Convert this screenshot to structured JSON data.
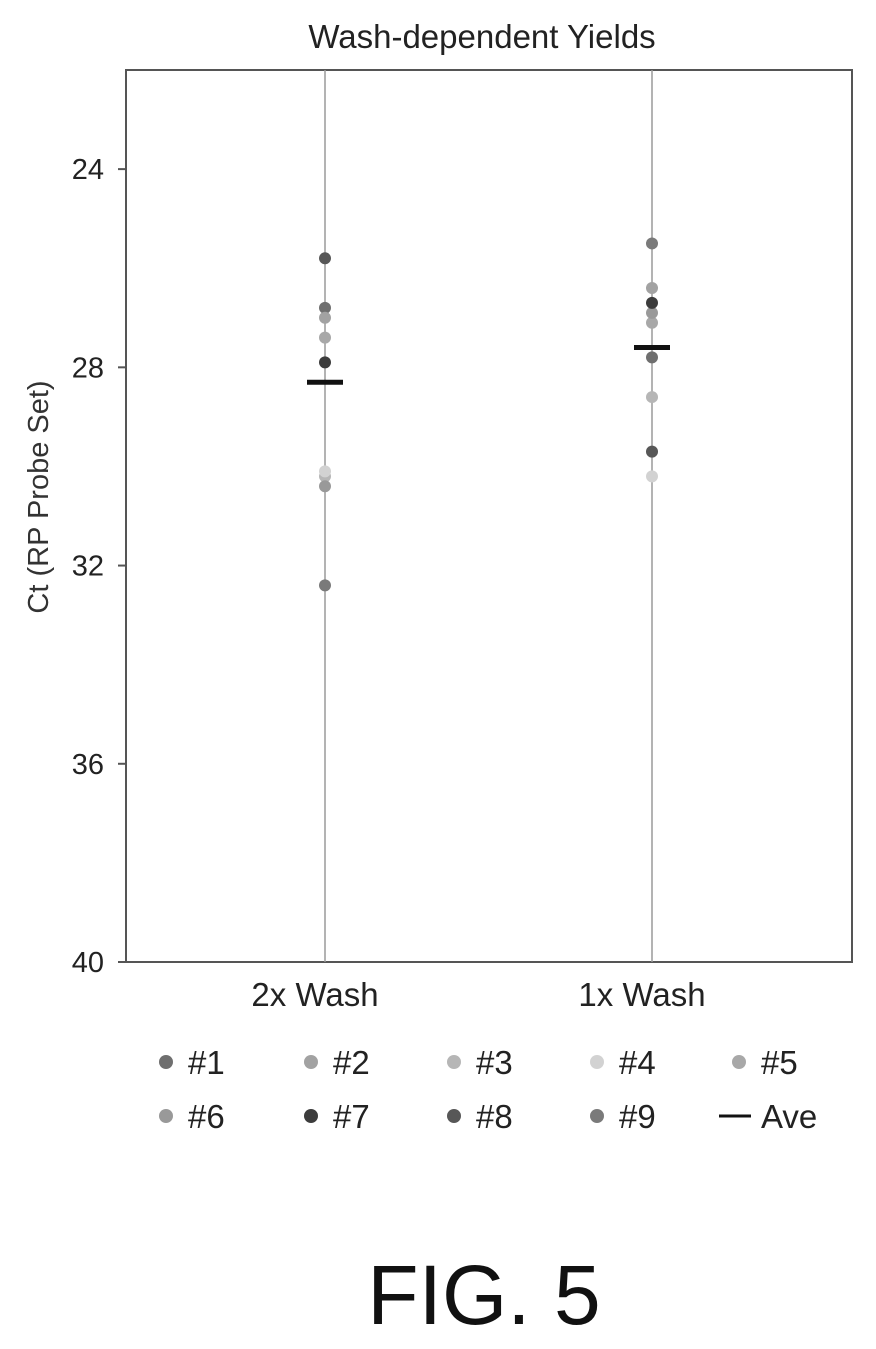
{
  "chart_data": {
    "type": "scatter",
    "title": "Wash-dependent Yields",
    "xlabel": "",
    "ylabel": "Ct (RP Probe Set)",
    "ylim": [
      22,
      40
    ],
    "y_inverted": true,
    "yticks": [
      24,
      28,
      32,
      36,
      40
    ],
    "categories": [
      "2x Wash",
      "1x Wash"
    ],
    "grid": "vertical lines at categories",
    "legend_position": "bottom",
    "series": [
      {
        "name": "#1",
        "color": "#6f6f6f",
        "values": [
          26.8,
          27.8
        ]
      },
      {
        "name": "#2",
        "color": "#a2a2a2",
        "values": [
          27.0,
          26.4
        ]
      },
      {
        "name": "#3",
        "color": "#b6b6b6",
        "values": [
          30.2,
          28.6
        ]
      },
      {
        "name": "#4",
        "color": "#d2d2d2",
        "values": [
          30.1,
          30.2
        ]
      },
      {
        "name": "#5",
        "color": "#a8a8a8",
        "values": [
          27.4,
          27.1
        ]
      },
      {
        "name": "#6",
        "color": "#999999",
        "values": [
          30.4,
          26.9
        ]
      },
      {
        "name": "#7",
        "color": "#3c3c3c",
        "values": [
          27.9,
          26.7
        ]
      },
      {
        "name": "#8",
        "color": "#575757",
        "values": [
          25.8,
          29.7
        ]
      },
      {
        "name": "#9",
        "color": "#7a7a7a",
        "values": [
          32.4,
          25.5
        ]
      }
    ],
    "average": {
      "name": "Ave",
      "values": [
        28.3,
        27.6
      ]
    }
  },
  "legend": {
    "items": [
      "#1",
      "#2",
      "#3",
      "#4",
      "#5",
      "#6",
      "#7",
      "#8",
      "#9"
    ],
    "ave_label": "Ave"
  },
  "caption": "FIG. 5"
}
